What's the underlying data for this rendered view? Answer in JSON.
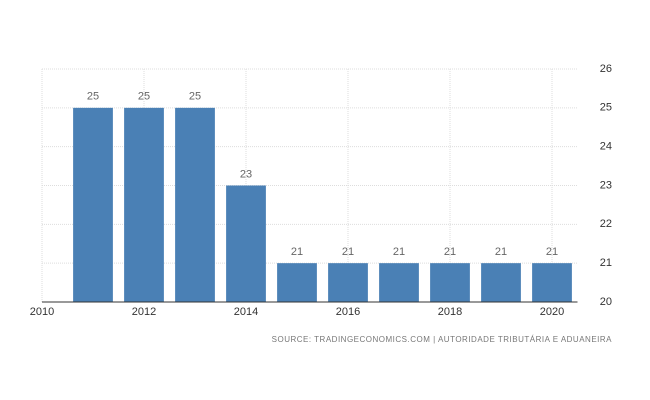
{
  "chart_data": {
    "type": "bar",
    "x": [
      2011,
      2012,
      2013,
      2014,
      2015,
      2016,
      2017,
      2018,
      2019,
      2020
    ],
    "values": [
      25,
      25,
      25,
      23,
      21,
      21,
      21,
      21,
      21,
      21
    ],
    "color": "#4a80b5",
    "xlim": [
      2010,
      2020.5
    ],
    "xticks": [
      2010,
      2012,
      2014,
      2016,
      2018,
      2020
    ],
    "ylim": [
      20,
      26
    ],
    "yticks": [
      20,
      21,
      22,
      23,
      24,
      25,
      26
    ],
    "grid": true,
    "source": "SOURCE: TRADINGECONOMICS.COM | AUTORIDADE TRIBUTÁRIA E ADUANEIRA"
  }
}
